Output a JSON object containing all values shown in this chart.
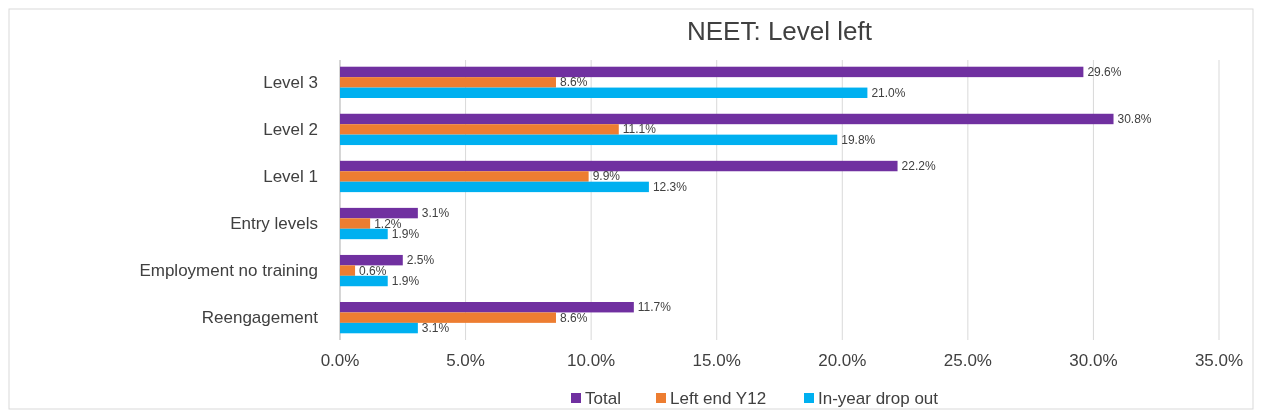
{
  "chart_data": {
    "type": "bar",
    "orientation": "horizontal",
    "title": "NEET: Level left",
    "categories": [
      "Level 3",
      "Level 2",
      "Level 1",
      "Entry levels",
      "Employment no training",
      "Reengagement"
    ],
    "series": [
      {
        "name": "Total",
        "color": "#7030a0",
        "values": [
          29.6,
          30.8,
          22.2,
          3.1,
          2.5,
          11.7
        ],
        "value_labels": [
          "29.6%",
          "30.8%",
          "22.2%",
          "3.1%",
          "2.5%",
          "11.7%"
        ]
      },
      {
        "name": "Left end Y12",
        "color": "#ed7d31",
        "values": [
          8.6,
          11.1,
          9.9,
          1.2,
          0.6,
          8.6
        ],
        "value_labels": [
          "8.6%",
          "11.1%",
          "9.9%",
          "1.2%",
          "0.6%",
          "8.6%"
        ]
      },
      {
        "name": "In-year drop out",
        "color": "#00b0f0",
        "values": [
          21.0,
          19.8,
          12.3,
          1.9,
          1.9,
          3.1
        ],
        "value_labels": [
          "21.0%",
          "19.8%",
          "12.3%",
          "1.9%",
          "1.9%",
          "3.1%"
        ]
      }
    ],
    "xlim": [
      0,
      35
    ],
    "xticks": [
      {
        "value": 0,
        "label": "0.0%"
      },
      {
        "value": 5,
        "label": "5.0%"
      },
      {
        "value": 10,
        "label": "10.0%"
      },
      {
        "value": 15,
        "label": "15.0%"
      },
      {
        "value": 20,
        "label": "20.0%"
      },
      {
        "value": 25,
        "label": "25.0%"
      },
      {
        "value": 30,
        "label": "30.0%"
      },
      {
        "value": 35,
        "label": "35.0%"
      }
    ],
    "grid": "x",
    "legend": "bottom"
  }
}
